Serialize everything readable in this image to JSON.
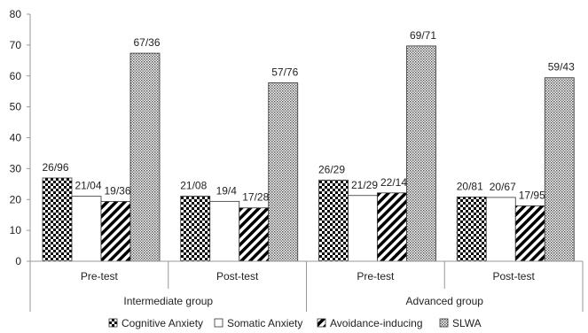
{
  "chart_data": {
    "type": "bar",
    "ylim": [
      0,
      80
    ],
    "y_ticks": [
      "0",
      "10",
      "20",
      "30",
      "40",
      "50",
      "60",
      "70",
      "80"
    ],
    "grid": false,
    "legend_position": "bottom",
    "groups": [
      {
        "label": "Intermediate group",
        "categories": [
          "Pre-test",
          "Post-test"
        ]
      },
      {
        "label": "Advanced group",
        "categories": [
          "Pre-test",
          "Post-test"
        ]
      }
    ],
    "categories": [
      "Pre-test",
      "Post-test",
      "Pre-test",
      "Post-test"
    ],
    "series": [
      {
        "name": "Cognitive Anxiety",
        "pattern": "checker",
        "values": [
          26.96,
          21.08,
          26.29,
          20.81
        ],
        "labels": [
          "26/96",
          "21/08",
          "26/29",
          "20/81"
        ]
      },
      {
        "name": "Somatic Anxiety",
        "pattern": "solid-white",
        "values": [
          21.04,
          19.4,
          21.29,
          20.67
        ],
        "labels": [
          "21/04",
          "19/4",
          "21/29",
          "20/67"
        ]
      },
      {
        "name": "Avoidance-inducing",
        "pattern": "diagonal-stripes",
        "values": [
          19.36,
          17.28,
          22.14,
          17.95
        ],
        "labels": [
          "19/36",
          "17/28",
          "22/14",
          "17/95"
        ]
      },
      {
        "name": "SLWA",
        "pattern": "dots",
        "values": [
          67.36,
          57.76,
          69.71,
          59.43
        ],
        "labels": [
          "67/36",
          "57/76",
          "69/71",
          "59/43"
        ]
      }
    ]
  }
}
